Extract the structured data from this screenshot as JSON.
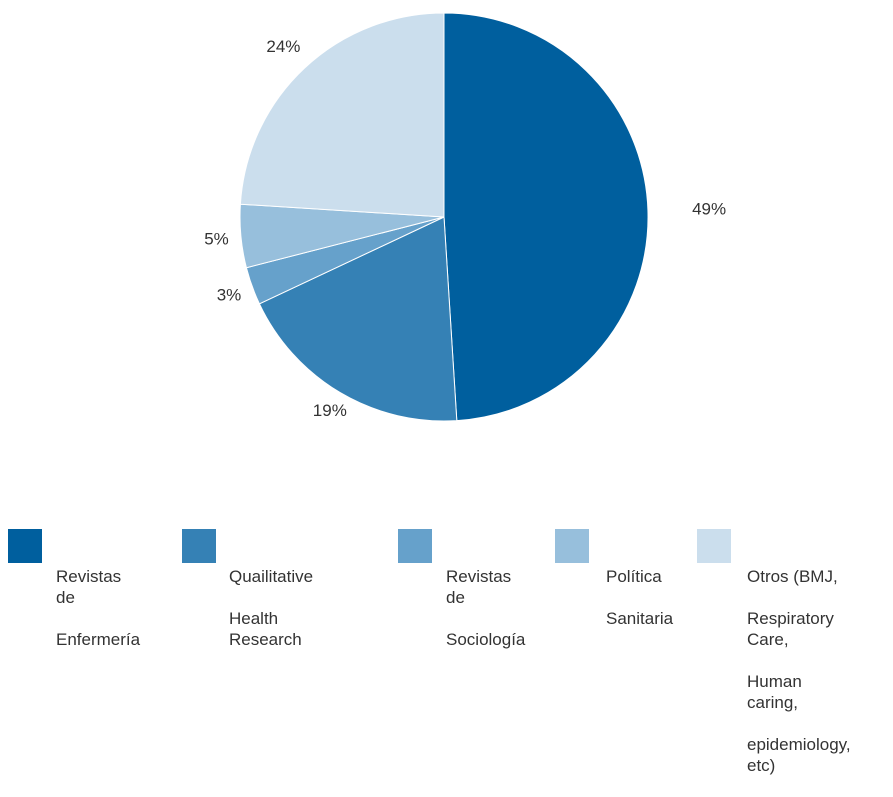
{
  "chart_data": {
    "type": "pie",
    "categories": [
      "Revistas de Enfermería",
      "Quailitative Health Research",
      "Revistas de Sociología",
      "Política Sanitaria",
      "Otros (BMJ, Respiratory Care, Human caring, epidemiology, etc)"
    ],
    "values": [
      49,
      19,
      3,
      5,
      24
    ],
    "value_labels": [
      "49%",
      "19%",
      "3%",
      "5%",
      "24%"
    ],
    "colors": [
      "#005f9e",
      "#3581b5",
      "#66a1cb",
      "#97bfdc",
      "#cbdeed"
    ],
    "title": "",
    "legend_position": "bottom",
    "start_angle": "12 o'clock",
    "direction": "clockwise"
  },
  "legend": [
    {
      "line1": "Revistas de",
      "line2": "Enfermería"
    },
    {
      "line1": "Quailitative",
      "line2": "Health Research"
    },
    {
      "line1": "Revistas de",
      "line2": "Sociología"
    },
    {
      "line1": "Política",
      "line2": "Sanitaria"
    },
    {
      "line1": "Otros (BMJ,",
      "line2": "Respiratory Care,",
      "line3": "Human caring,",
      "line4": "epidemiology, etc)"
    }
  ]
}
